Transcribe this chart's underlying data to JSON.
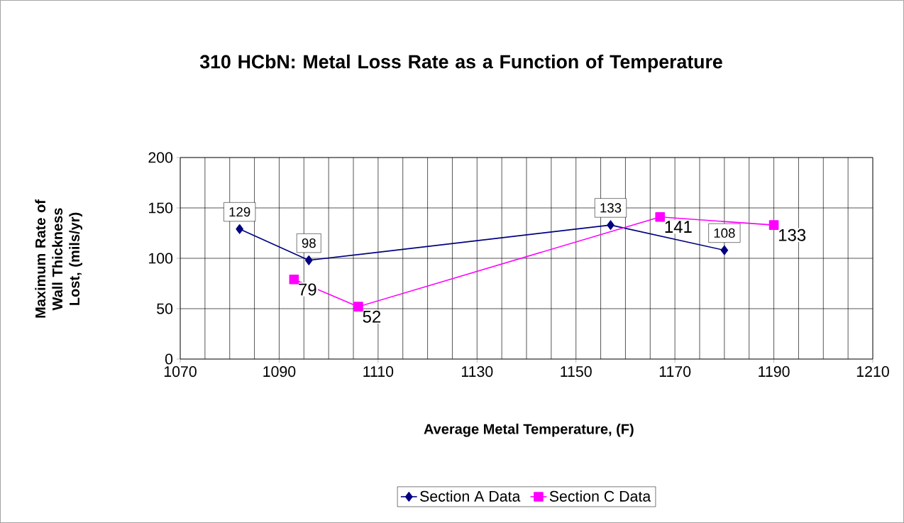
{
  "chart_data": {
    "type": "line",
    "title": "310 HCbN:  Metal Loss Rate as a Function of Temperature",
    "xlabel": "Average Metal Temperature, (F)",
    "ylabel": "Maximum Rate of Wall Thickness Lost, (mils/yr)",
    "xlim": [
      1070,
      1210
    ],
    "xticks": [
      1070,
      1090,
      1110,
      1130,
      1150,
      1170,
      1190,
      1210
    ],
    "ylim": [
      0,
      200
    ],
    "yticks": [
      0,
      50,
      100,
      150,
      200
    ],
    "grid": true,
    "legend": "bottom",
    "data_labels": true,
    "series": [
      {
        "name": "Section A Data",
        "color": "#000080",
        "marker": "diamond",
        "x": [
          1082,
          1096,
          1157,
          1180
        ],
        "values": [
          129,
          98,
          133,
          108
        ]
      },
      {
        "name": "Section C Data",
        "color": "#ff00ff",
        "marker": "square",
        "x": [
          1093,
          1106,
          1167,
          1190
        ],
        "values": [
          79,
          52,
          141,
          133
        ]
      }
    ]
  }
}
